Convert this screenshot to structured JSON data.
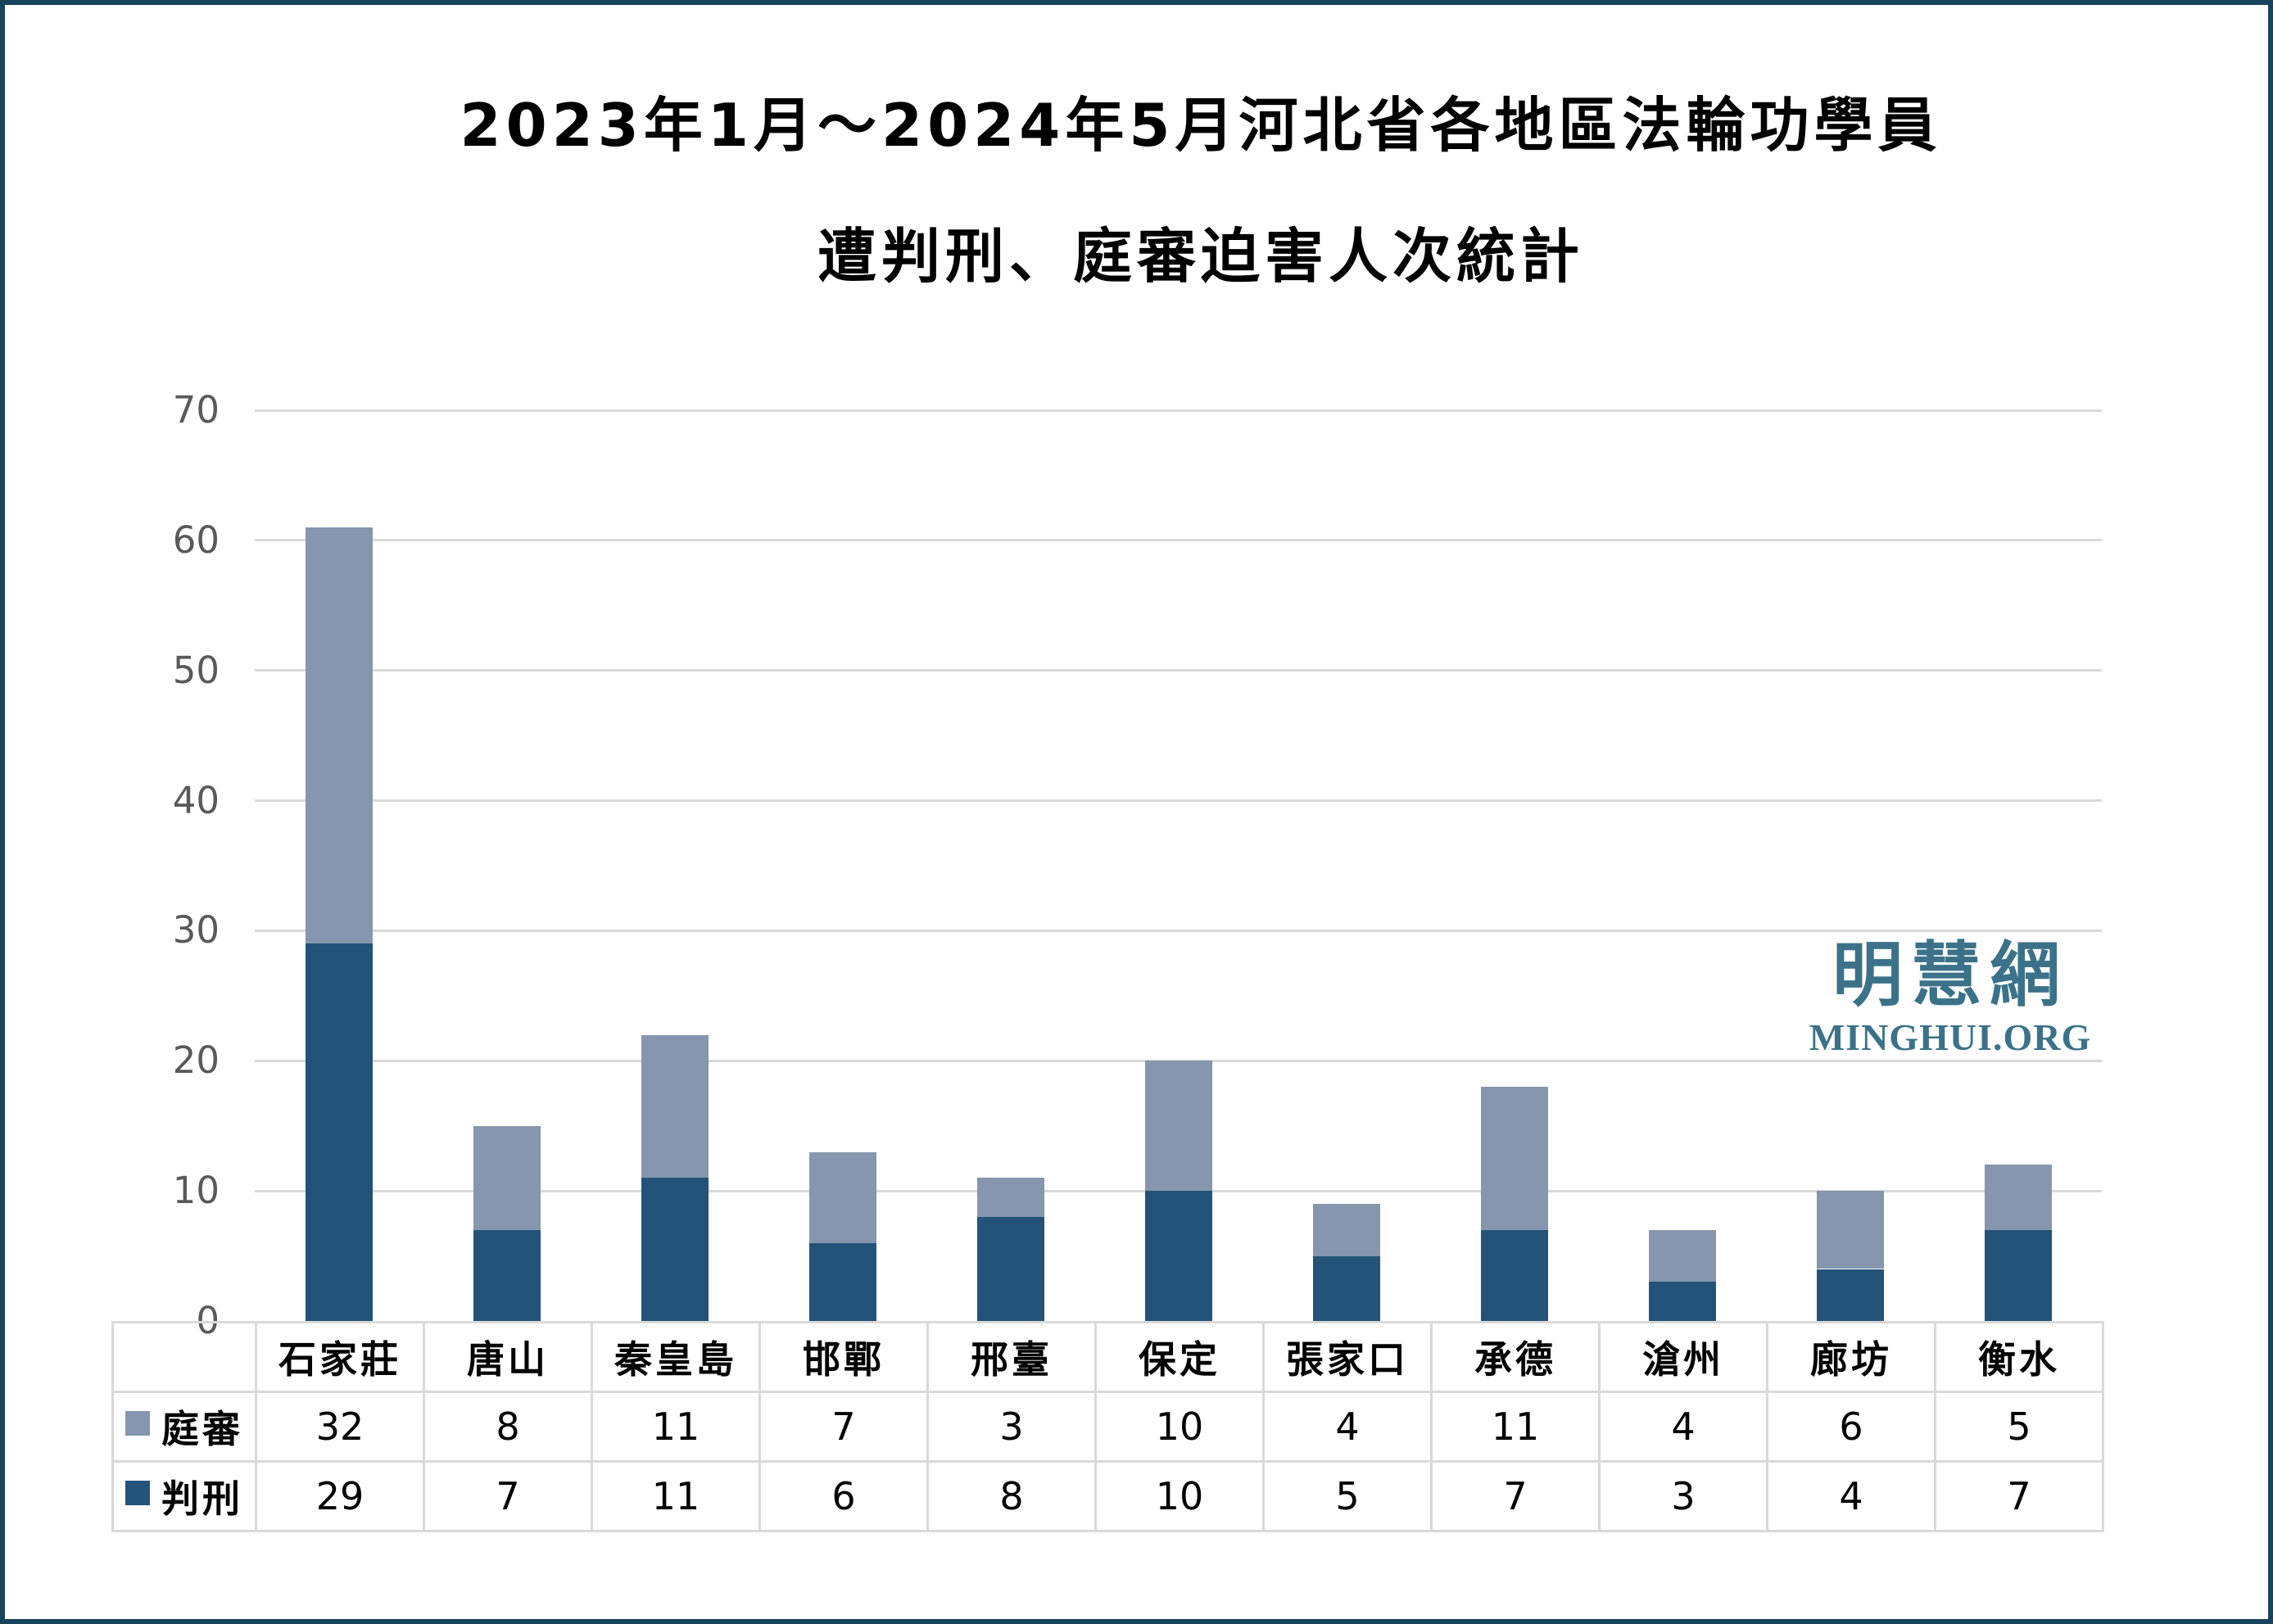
{
  "frame": {
    "border_color": "#19435c",
    "background": "#ffffff"
  },
  "title": {
    "line1": "2023年1月～2024年5月河北省各地區法輪功學員",
    "line2": "遭判刑、庭審迫害人次統計"
  },
  "watermark": {
    "cjk": "明慧網",
    "latin": "MINGHUI.ORG",
    "color": "#3b7289"
  },
  "axis": {
    "tick_label_color": "#595959",
    "gridline_color": "#d9d9d9",
    "yticks": [
      0,
      10,
      20,
      30,
      40,
      50,
      60,
      70
    ]
  },
  "chart_data": {
    "type": "bar",
    "stacked": true,
    "title": "2023年1月～2024年5月河北省各地區法輪功學員 遭判刑、庭審迫害人次統計",
    "categories": [
      "石家莊",
      "唐山",
      "秦皇島",
      "邯鄲",
      "邢臺",
      "保定",
      "張家口",
      "承德",
      "滄州",
      "廊坊",
      "衡水"
    ],
    "series": [
      {
        "name": "庭審",
        "color": "#8596ae",
        "values": [
          32,
          8,
          11,
          7,
          3,
          10,
          4,
          11,
          4,
          6,
          5
        ]
      },
      {
        "name": "判刑",
        "color": "#235378",
        "values": [
          29,
          7,
          11,
          6,
          8,
          10,
          5,
          7,
          3,
          4,
          7
        ]
      }
    ],
    "stack_bottom_to_top": [
      "判刑",
      "庭審"
    ],
    "xlabel": "",
    "ylabel": "",
    "ylim": [
      0,
      70
    ],
    "ytick_step": 10,
    "grid": true,
    "legend_position": "data-table-left",
    "data_table_shown": true
  }
}
